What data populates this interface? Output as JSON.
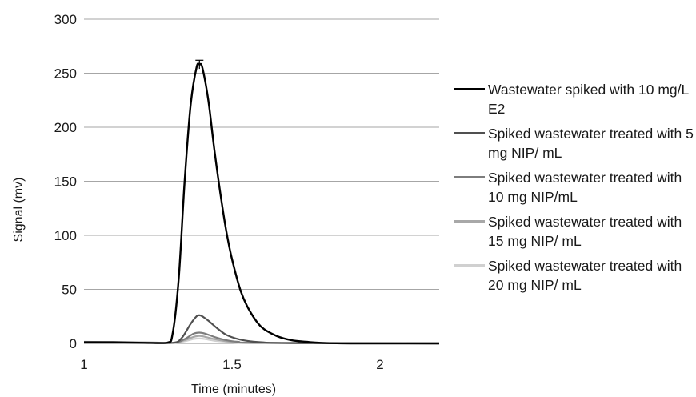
{
  "chart_data": {
    "type": "line",
    "title": "",
    "xlabel": "Time (minutes)",
    "ylabel": "Signal (mv)",
    "xlim": [
      1,
      2.2
    ],
    "ylim": [
      0,
      300
    ],
    "x_ticks": [
      1,
      1.5,
      2
    ],
    "x_tick_labels": [
      "1",
      "1.5",
      "2"
    ],
    "y_ticks": [
      0,
      50,
      100,
      150,
      200,
      250,
      300
    ],
    "y_tick_labels": [
      "0",
      "50",
      "100",
      "150",
      "200",
      "250",
      "300"
    ],
    "grid": "horizontal",
    "legend_position": "right",
    "error_bar": {
      "x": 1.39,
      "y": 258,
      "err": 4
    },
    "series": [
      {
        "name": "Wastewater spiked with 10 mg/L E2",
        "color": "#000000",
        "width": 2.4,
        "x": [
          1.0,
          1.1,
          1.2,
          1.28,
          1.3,
          1.32,
          1.34,
          1.36,
          1.38,
          1.39,
          1.4,
          1.42,
          1.44,
          1.46,
          1.48,
          1.5,
          1.53,
          1.56,
          1.6,
          1.65,
          1.7,
          1.75,
          1.8,
          1.9,
          2.0,
          2.2
        ],
        "y": [
          1,
          1,
          0.5,
          0.5,
          10,
          60,
          150,
          220,
          255,
          258,
          255,
          225,
          180,
          140,
          105,
          78,
          48,
          30,
          15,
          7,
          3,
          1.5,
          0.5,
          0,
          0,
          0
        ]
      },
      {
        "name": "Spiked wastewater treated with 5 mg NIP/ mL",
        "color": "#505050",
        "width": 2.2,
        "x": [
          1.0,
          1.2,
          1.3,
          1.33,
          1.36,
          1.38,
          1.39,
          1.4,
          1.42,
          1.45,
          1.48,
          1.52,
          1.56,
          1.6,
          1.7,
          2.2
        ],
        "y": [
          0.5,
          0.5,
          0.5,
          5,
          18,
          25,
          26,
          25,
          21,
          14,
          8,
          4,
          2,
          1,
          0.3,
          0
        ]
      },
      {
        "name": "Spiked wastewater treated with 10 mg NIP/mL",
        "color": "#7d7d7d",
        "width": 2.2,
        "x": [
          1.0,
          1.2,
          1.3,
          1.34,
          1.37,
          1.39,
          1.41,
          1.44,
          1.48,
          1.52,
          1.6,
          2.2
        ],
        "y": [
          0.5,
          0.5,
          0.5,
          4,
          9,
          10,
          9,
          6,
          3,
          1.5,
          0.5,
          0
        ]
      },
      {
        "name": "Spiked wastewater treated with 15 mg NIP/ mL",
        "color": "#a8a8a8",
        "width": 2.2,
        "x": [
          1.0,
          1.2,
          1.3,
          1.34,
          1.37,
          1.39,
          1.41,
          1.44,
          1.48,
          1.52,
          1.6,
          2.2
        ],
        "y": [
          1.5,
          1,
          0.5,
          3,
          6,
          7,
          6,
          4,
          2,
          1,
          0.5,
          0
        ]
      },
      {
        "name": "Spiked wastewater treated with 20 mg NIP/ mL",
        "color": "#d0d0d0",
        "width": 2.2,
        "x": [
          1.0,
          1.2,
          1.3,
          1.34,
          1.37,
          1.39,
          1.41,
          1.44,
          1.48,
          1.52,
          1.6,
          2.2
        ],
        "y": [
          1,
          1,
          0.5,
          2,
          4,
          4.5,
          4,
          2.5,
          1.5,
          0.5,
          0.2,
          0
        ]
      }
    ]
  }
}
